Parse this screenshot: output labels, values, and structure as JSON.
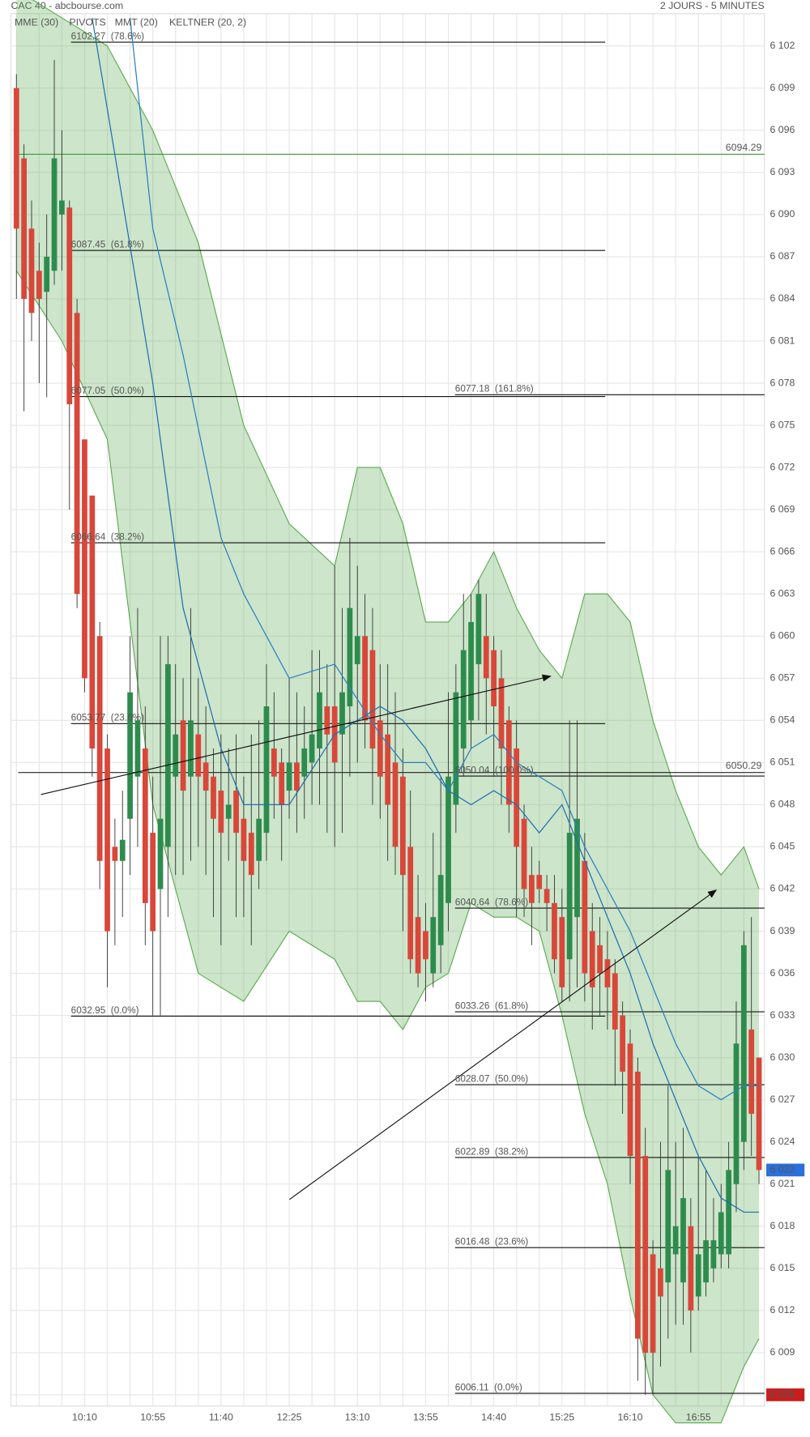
{
  "header": {
    "title": "CAC 40 - abcbourse.com",
    "period": "2 JOURS - 5 MINUTES"
  },
  "chart_data": {
    "type": "candlestick",
    "categories": [
      null,
      null,
      null,
      null,
      null,
      null,
      null,
      null,
      null,
      "10:10",
      null,
      null,
      null,
      null,
      null,
      null,
      null,
      null,
      "10:55",
      null,
      null,
      null,
      null,
      null,
      null,
      null,
      null,
      "11:40",
      null,
      null,
      null,
      null,
      null,
      null,
      null,
      null,
      "12:25",
      null,
      null,
      null,
      null,
      null,
      null,
      null,
      null,
      "13:10",
      null,
      null,
      null,
      null,
      null,
      null,
      null,
      null,
      "13:55",
      null,
      null,
      null,
      null,
      null,
      null,
      null,
      null,
      "14:40",
      null,
      null,
      null,
      null,
      null,
      null,
      null,
      null,
      "15:25",
      null,
      null,
      null,
      null,
      null,
      null,
      null,
      null,
      "16:10",
      null,
      null,
      null,
      null,
      null,
      null,
      null,
      null,
      "16:55",
      null,
      null,
      null,
      null,
      null,
      null,
      null,
      null
    ],
    "open": [
      6099,
      6094,
      6089,
      6086,
      6084.5,
      6086,
      6090,
      6090.5,
      6083,
      6074,
      6070,
      6060,
      6052,
      6045,
      6044,
      6047,
      6050,
      6052,
      6046,
      6042,
      6045,
      6050,
      6054,
      6050,
      6053,
      6051,
      6050,
      6049,
      6047,
      6049,
      6047,
      6046,
      6044,
      6046,
      6052,
      6051,
      6049,
      6051,
      6050,
      6051,
      6052,
      6055,
      6055,
      6053,
      6055,
      6058,
      6060,
      6059,
      6054,
      6053,
      6051,
      6050,
      6045,
      6040,
      6039,
      6036,
      6038,
      6041,
      6048,
      6052,
      6054,
      6058,
      6060,
      6059,
      6057,
      6054,
      6052,
      6047,
      6043,
      6043,
      6042,
      6041,
      6040,
      6037,
      6040,
      6044,
      6039,
      6038,
      6037,
      6036,
      6033,
      6031,
      6029,
      6023,
      6016,
      6015,
      6014,
      6016,
      6014,
      6018,
      6013,
      6014,
      6015,
      6016,
      6016,
      6021,
      6024,
      6032,
      6030
    ],
    "high": [
      6100,
      6095,
      6091,
      6088,
      6090,
      6101,
      6096,
      6091,
      6084,
      6074,
      6070,
      6061,
      6053,
      6047,
      6049,
      6060,
      6062,
      6055,
      6050,
      6060,
      6060,
      6058,
      6057,
      6062,
      6057,
      6055,
      6052,
      6053,
      6052,
      6053,
      6050,
      6053,
      6054,
      6058,
      6056,
      6052,
      6057,
      6056,
      6055,
      6059,
      6059,
      6058,
      6065,
      6062,
      6067,
      6065,
      6063,
      6062,
      6058,
      6058,
      6056,
      6052,
      6049,
      6043,
      6041,
      6046,
      6050,
      6056,
      6058,
      6063,
      6063,
      6064,
      6063,
      6060,
      6059,
      6055,
      6054,
      6048,
      6045,
      6044,
      6043,
      6043,
      6042,
      6054,
      6054,
      6046,
      6041,
      6040,
      6039,
      6037,
      6034,
      6032,
      6030,
      6025,
      6017,
      6024,
      6028,
      6024,
      6025,
      6020,
      6023,
      6022,
      6020,
      6021,
      6024,
      6034,
      6039,
      6040,
      6030
    ],
    "low": [
      6084,
      6076,
      6081,
      6078,
      6077,
      6085,
      6086,
      6069,
      6062,
      6056,
      6050,
      6042,
      6035,
      6038,
      6040,
      6043,
      6045,
      6038,
      6033,
      6033,
      6040,
      6043,
      6043,
      6044,
      6045,
      6043,
      6040,
      6038,
      6044,
      6040,
      6040,
      6038,
      6042,
      6044,
      6047,
      6044,
      6047,
      6046,
      6047,
      6048,
      6048,
      6046,
      6045,
      6046,
      6050,
      6051,
      6052,
      6048,
      6047,
      6044,
      6043,
      6039,
      6036,
      6035,
      6034,
      6035,
      6036,
      6039,
      6046,
      6050,
      6052,
      6054,
      6053,
      6050,
      6048,
      6046,
      6040,
      6040,
      6038,
      6041,
      6039,
      6036,
      6034,
      6034,
      6035,
      6034,
      6032,
      6033,
      6032,
      6028,
      6026,
      6021,
      6007,
      6006,
      6006,
      6008,
      6010,
      6011,
      6011,
      6009,
      6012,
      6013,
      6014,
      6015,
      6015,
      6019,
      6022,
      6023,
      6021
    ],
    "close": [
      6089,
      6084,
      6083,
      6084,
      6087,
      6094,
      6091,
      6076.5,
      6063,
      6057,
      6052,
      6044,
      6039,
      6044,
      6045.5,
      6056,
      6054,
      6041,
      6039,
      6047,
      6058,
      6053,
      6049,
      6054,
      6050,
      6049,
      6047,
      6046,
      6048,
      6046,
      6044,
      6043,
      6047,
      6055,
      6050,
      6048,
      6051,
      6049,
      6052,
      6053,
      6056,
      6053,
      6051,
      6056,
      6062,
      6060,
      6054,
      6052,
      6050,
      6048,
      6045,
      6043,
      6037,
      6036,
      6037,
      6040,
      6043,
      6050,
      6056,
      6059,
      6061,
      6063,
      6057,
      6055,
      6052,
      6048,
      6045,
      6042,
      6041,
      6042,
      6041,
      6037,
      6035,
      6046,
      6047,
      6036,
      6035,
      6036,
      6035,
      6032,
      6029,
      6023,
      6010,
      6009,
      6009,
      6013,
      6022,
      6018,
      6020,
      6012,
      6016,
      6017,
      6017,
      6019,
      6022,
      6031,
      6038,
      6026,
      6022
    ],
    "up_color": "#2e8b4e",
    "down_color": "#d8473a",
    "ylim": [
      6005.2,
      6104.3
    ],
    "yticks": [
      {
        "value": 6006,
        "label": "6 006"
      },
      {
        "value": 6009,
        "label": "6 009"
      },
      {
        "value": 6012,
        "label": "6 012"
      },
      {
        "value": 6015,
        "label": "6 015"
      },
      {
        "value": 6018,
        "label": "6 018"
      },
      {
        "value": 6021,
        "label": "6 021"
      },
      {
        "value": 6024,
        "label": "6 024"
      },
      {
        "value": 6027,
        "label": "6 027"
      },
      {
        "value": 6030,
        "label": "6 030"
      },
      {
        "value": 6033,
        "label": "6 033"
      },
      {
        "value": 6036,
        "label": "6 036"
      },
      {
        "value": 6039,
        "label": "6 039"
      },
      {
        "value": 6042,
        "label": "6 042"
      },
      {
        "value": 6045,
        "label": "6 045"
      },
      {
        "value": 6048,
        "label": "6 048"
      },
      {
        "value": 6051,
        "label": "6 051"
      },
      {
        "value": 6054,
        "label": "6 054"
      },
      {
        "value": 6057,
        "label": "6 057"
      },
      {
        "value": 6060,
        "label": "6 060"
      },
      {
        "value": 6063,
        "label": "6 063"
      },
      {
        "value": 6066,
        "label": "6 066"
      },
      {
        "value": 6069,
        "label": "6 069"
      },
      {
        "value": 6072,
        "label": "6 072"
      },
      {
        "value": 6075,
        "label": "6 075"
      },
      {
        "value": 6078,
        "label": "6 078"
      },
      {
        "value": 6081,
        "label": "6 081"
      },
      {
        "value": 6084,
        "label": "6 084"
      },
      {
        "value": 6087,
        "label": "6 087"
      },
      {
        "value": 6090,
        "label": "6 090"
      },
      {
        "value": 6093,
        "label": "6 093"
      },
      {
        "value": 6096,
        "label": "6 096"
      },
      {
        "value": 6099,
        "label": "6 099"
      },
      {
        "value": 6102,
        "label": "6 102"
      }
    ],
    "grid": true,
    "keltner": {
      "name": "KELTNER (20, 2)",
      "color": "#5aaa50",
      "x": [
        0,
        6,
        12,
        18,
        24,
        30,
        36,
        42,
        45,
        48,
        51,
        54,
        57,
        60,
        63,
        66,
        69,
        72,
        75,
        78,
        81,
        84,
        87,
        90,
        93,
        96,
        98
      ],
      "upper": [
        6106,
        6104,
        6102,
        6096,
        6088,
        6075,
        6068,
        6065,
        6072,
        6072,
        6068,
        6061,
        6061,
        6063,
        6066,
        6062,
        6059,
        6057,
        6063,
        6063,
        6061,
        6054,
        6049,
        6045,
        6043,
        6045,
        6042
      ],
      "lower": [
        6086,
        6081,
        6074,
        6048,
        6036,
        6034,
        6039,
        6037,
        6034,
        6034,
        6032,
        6035,
        6036,
        6041,
        6040,
        6040,
        6039,
        6033,
        6026,
        6021,
        6013,
        6006,
        6004,
        6004,
        6004,
        6008,
        6010
      ]
    },
    "moving_averages": [
      {
        "name": "MME (30)",
        "color": "#1f6fb0",
        "x": [
          10,
          18,
          22,
          27,
          30,
          36,
          42,
          48,
          51,
          54,
          57,
          60,
          63,
          66,
          69,
          72,
          75,
          78,
          81,
          84,
          87,
          90,
          93,
          96,
          98
        ],
        "values": [
          6104,
          6078,
          6062,
          6052,
          6048,
          6048,
          6053,
          6055,
          6054,
          6052,
          6049,
          6048,
          6049,
          6048,
          6046,
          6048,
          6044,
          6040,
          6036,
          6031,
          6027,
          6023,
          6020,
          6019,
          6019
        ]
      },
      {
        "name": "MMT (20)",
        "color": "#2a7fc0",
        "x": [
          15,
          18,
          22,
          27,
          30,
          36,
          42,
          48,
          51,
          54,
          57,
          60,
          63,
          66,
          69,
          72,
          75,
          78,
          81,
          84,
          87,
          90,
          93,
          96,
          98
        ],
        "values": [
          6104,
          6089,
          6080,
          6067,
          6063,
          6057,
          6058,
          6053,
          6051,
          6051,
          6049,
          6052,
          6053,
          6051,
          6050,
          6049,
          6045,
          6042,
          6039,
          6035,
          6031,
          6028,
          6027,
          6028,
          6028
        ]
      }
    ],
    "pivots": {
      "name": "PIVOTS",
      "levels": [
        {
          "value": 6094.29,
          "color": "#3a9a3a"
        },
        {
          "value": 6050.29,
          "color": "#222222"
        }
      ]
    },
    "fibonacci": [
      {
        "levels": [
          {
            "value": 6102.27,
            "label": "6102.27  (78.6%)"
          },
          {
            "value": 6087.45,
            "label": "6087.45  (61.8%)"
          },
          {
            "value": 6077.05,
            "label": "6077.05  (50.0%)"
          },
          {
            "value": 6066.64,
            "label": "6066.64  (38.2%)"
          },
          {
            "value": 6053.77,
            "label": "6053.77  (23.6%)"
          },
          {
            "value": 6032.95,
            "label": "6032.95  (0.0%)"
          }
        ]
      },
      {
        "levels": [
          {
            "value": 6077.18,
            "label": "6077.18  (161.8%)"
          },
          {
            "value": 6050.04,
            "label": "6050.04  (100.0%)"
          },
          {
            "value": 6040.64,
            "label": "6040.64  (78.6%)"
          },
          {
            "value": 6033.26,
            "label": "6033.26  (61.8%)"
          },
          {
            "value": 6028.07,
            "label": "6028.07  (50.0%)"
          },
          {
            "value": 6022.89,
            "label": "6022.89  (38.2%)"
          },
          {
            "value": 6016.48,
            "label": "6016.48  (23.6%)"
          },
          {
            "value": 6006.11,
            "label": "6006.11  (0.0%)"
          }
        ]
      }
    ],
    "price_markers": [
      {
        "value": 6022,
        "label": "6 022",
        "color": "#2a6fdb"
      },
      {
        "value": 6006,
        "label": "6 006",
        "color": "#c81e1e"
      }
    ]
  }
}
